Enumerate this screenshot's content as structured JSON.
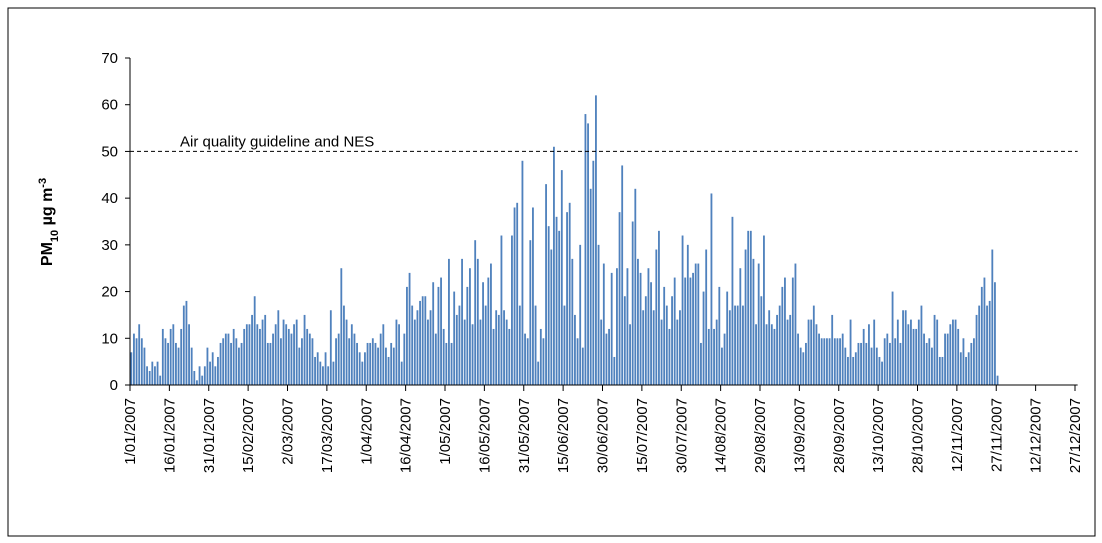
{
  "chart_data": {
    "type": "bar",
    "ylabel": {
      "main": "PM",
      "sub": "10",
      "rest": " µg m",
      "sup": "-3"
    },
    "reference_line": {
      "value": 50,
      "label": "Air quality guideline and NES"
    },
    "color": "#4f81bd",
    "ylim": [
      0,
      70
    ],
    "yticks": [
      0,
      10,
      20,
      30,
      40,
      50,
      60,
      70
    ],
    "categories": [
      "1/01/2007",
      null,
      null,
      null,
      null,
      null,
      null,
      null,
      null,
      null,
      null,
      null,
      null,
      null,
      null,
      "16/01/2007",
      null,
      null,
      null,
      null,
      null,
      null,
      null,
      null,
      null,
      null,
      null,
      null,
      null,
      null,
      "31/01/2007",
      null,
      null,
      null,
      null,
      null,
      null,
      null,
      null,
      null,
      null,
      null,
      null,
      null,
      null,
      "15/02/2007",
      null,
      null,
      null,
      null,
      null,
      null,
      null,
      null,
      null,
      null,
      null,
      null,
      null,
      null,
      "2/03/2007",
      null,
      null,
      null,
      null,
      null,
      null,
      null,
      null,
      null,
      null,
      null,
      null,
      null,
      null,
      "17/03/2007",
      null,
      null,
      null,
      null,
      null,
      null,
      null,
      null,
      null,
      null,
      null,
      null,
      null,
      null,
      "1/04/2007",
      null,
      null,
      null,
      null,
      null,
      null,
      null,
      null,
      null,
      null,
      null,
      null,
      null,
      null,
      "16/04/2007",
      null,
      null,
      null,
      null,
      null,
      null,
      null,
      null,
      null,
      null,
      null,
      null,
      null,
      null,
      "1/05/2007",
      null,
      null,
      null,
      null,
      null,
      null,
      null,
      null,
      null,
      null,
      null,
      null,
      null,
      null,
      "16/05/2007",
      null,
      null,
      null,
      null,
      null,
      null,
      null,
      null,
      null,
      null,
      null,
      null,
      null,
      null,
      "31/05/2007",
      null,
      null,
      null,
      null,
      null,
      null,
      null,
      null,
      null,
      null,
      null,
      null,
      null,
      null,
      "15/06/2007",
      null,
      null,
      null,
      null,
      null,
      null,
      null,
      null,
      null,
      null,
      null,
      null,
      null,
      null,
      "30/06/2007",
      null,
      null,
      null,
      null,
      null,
      null,
      null,
      null,
      null,
      null,
      null,
      null,
      null,
      null,
      "15/07/2007",
      null,
      null,
      null,
      null,
      null,
      null,
      null,
      null,
      null,
      null,
      null,
      null,
      null,
      null,
      "30/07/2007",
      null,
      null,
      null,
      null,
      null,
      null,
      null,
      null,
      null,
      null,
      null,
      null,
      null,
      null,
      "14/08/2007",
      null,
      null,
      null,
      null,
      null,
      null,
      null,
      null,
      null,
      null,
      null,
      null,
      null,
      null,
      "29/08/2007",
      null,
      null,
      null,
      null,
      null,
      null,
      null,
      null,
      null,
      null,
      null,
      null,
      null,
      null,
      "13/09/2007",
      null,
      null,
      null,
      null,
      null,
      null,
      null,
      null,
      null,
      null,
      null,
      null,
      null,
      null,
      "28/09/2007",
      null,
      null,
      null,
      null,
      null,
      null,
      null,
      null,
      null,
      null,
      null,
      null,
      null,
      null,
      "13/10/2007",
      null,
      null,
      null,
      null,
      null,
      null,
      null,
      null,
      null,
      null,
      null,
      null,
      null,
      null,
      "28/10/2007",
      null,
      null,
      null,
      null,
      null,
      null,
      null,
      null,
      null,
      null,
      null,
      null,
      null,
      null,
      "12/11/2007",
      null,
      null,
      null,
      null,
      null,
      null,
      null,
      null,
      null,
      null,
      null,
      null,
      null,
      null,
      "27/11/2007",
      null,
      null,
      null,
      null,
      null,
      null,
      null,
      null,
      null,
      null,
      null,
      null,
      null,
      null,
      "12/12/2007",
      null,
      null,
      null,
      null,
      null,
      null,
      null,
      null,
      null,
      null,
      null,
      null,
      null,
      null,
      "27/12/2007"
    ],
    "values": [
      7,
      11,
      10,
      13,
      10,
      8,
      4,
      3,
      5,
      4,
      5,
      2,
      12,
      10,
      9,
      12,
      13,
      9,
      8,
      12,
      17,
      18,
      13,
      8,
      3,
      1,
      4,
      2,
      4,
      8,
      5,
      7,
      4,
      6,
      9,
      10,
      11,
      11,
      9,
      12,
      10,
      8,
      9,
      12,
      13,
      13,
      15,
      19,
      13,
      12,
      14,
      15,
      9,
      9,
      11,
      13,
      16,
      10,
      14,
      13,
      12,
      11,
      13,
      14,
      8,
      10,
      15,
      12,
      11,
      10,
      6,
      7,
      5,
      4,
      7,
      4,
      16,
      5,
      10,
      11,
      25,
      17,
      14,
      10,
      13,
      11,
      9,
      7,
      5,
      7,
      9,
      9,
      10,
      9,
      8,
      11,
      13,
      8,
      6,
      9,
      8,
      14,
      13,
      5,
      11,
      21,
      24,
      17,
      14,
      16,
      18,
      19,
      19,
      14,
      16,
      22,
      11,
      21,
      23,
      12,
      9,
      27,
      9,
      20,
      15,
      17,
      27,
      14,
      21,
      25,
      13,
      31,
      27,
      14,
      22,
      17,
      23,
      26,
      12,
      16,
      15,
      32,
      16,
      14,
      12,
      32,
      38,
      39,
      17,
      48,
      11,
      10,
      31,
      38,
      17,
      5,
      12,
      10,
      43,
      34,
      29,
      51,
      36,
      33,
      46,
      17,
      37,
      39,
      27,
      15,
      10,
      30,
      8,
      58,
      56,
      42,
      48,
      62,
      30,
      14,
      26,
      11,
      12,
      24,
      6,
      25,
      37,
      47,
      19,
      25,
      13,
      35,
      42,
      27,
      24,
      16,
      19,
      25,
      22,
      16,
      29,
      33,
      14,
      21,
      17,
      12,
      19,
      23,
      14,
      16,
      32,
      23,
      30,
      23,
      24,
      26,
      26,
      9,
      20,
      29,
      12,
      41,
      12,
      14,
      21,
      8,
      11,
      20,
      16,
      36,
      17,
      17,
      25,
      17,
      29,
      33,
      33,
      27,
      13,
      26,
      19,
      32,
      13,
      16,
      13,
      12,
      15,
      17,
      21,
      23,
      14,
      15,
      23,
      26,
      11,
      8,
      7,
      9,
      14,
      14,
      17,
      13,
      11,
      10,
      10,
      10,
      10,
      15,
      10,
      10,
      10,
      11,
      8,
      6,
      14,
      6,
      7,
      9,
      9,
      12,
      9,
      13,
      8,
      14,
      8,
      6,
      5,
      10,
      11,
      9,
      20,
      10,
      14,
      9,
      16,
      16,
      13,
      14,
      12,
      12,
      14,
      17,
      11,
      9,
      10,
      8,
      15,
      14,
      6,
      6,
      11,
      11,
      13,
      14,
      14,
      12,
      7,
      10,
      6,
      7,
      9,
      10,
      15,
      17,
      21,
      23,
      17,
      18,
      29,
      22,
      2,
      null,
      null,
      null,
      null,
      null,
      null,
      null,
      null,
      null,
      null,
      null,
      null,
      null,
      null,
      null,
      null,
      null,
      null,
      null,
      null,
      null,
      null,
      null,
      null,
      null,
      null,
      null,
      null,
      null,
      null
    ]
  }
}
